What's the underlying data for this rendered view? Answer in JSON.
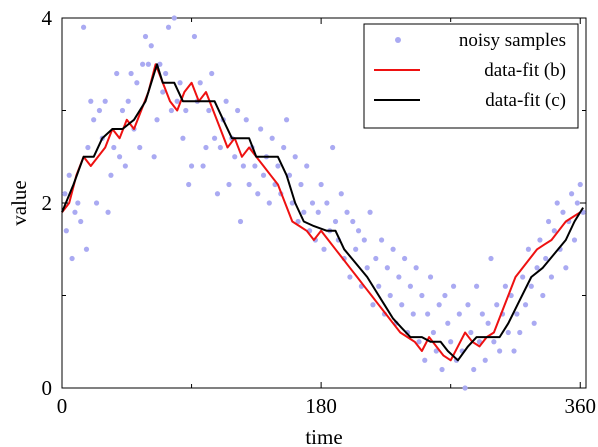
{
  "chart_data": {
    "type": "line",
    "title": "",
    "xlabel": "time",
    "ylabel": "value",
    "xlim": [
      0,
      364
    ],
    "ylim": [
      0,
      4
    ],
    "x_ticks": [
      0,
      180,
      360
    ],
    "y_ticks": [
      0,
      2,
      4
    ],
    "grid": false,
    "legend_position": "top-right",
    "series": [
      {
        "name": "noisy samples",
        "kind": "scatter",
        "color": "#aaaaf2",
        "points": [
          [
            2,
            2.1
          ],
          [
            3,
            1.7
          ],
          [
            5,
            2.3
          ],
          [
            7,
            1.4
          ],
          [
            9,
            1.9
          ],
          [
            11,
            2.0
          ],
          [
            13,
            1.8
          ],
          [
            15,
            3.9
          ],
          [
            17,
            1.5
          ],
          [
            18,
            2.6
          ],
          [
            20,
            3.1
          ],
          [
            22,
            2.9
          ],
          [
            24,
            2.0
          ],
          [
            26,
            3.0
          ],
          [
            28,
            2.7
          ],
          [
            30,
            3.1
          ],
          [
            32,
            1.9
          ],
          [
            34,
            2.3
          ],
          [
            36,
            2.6
          ],
          [
            38,
            3.4
          ],
          [
            40,
            2.5
          ],
          [
            42,
            3.0
          ],
          [
            44,
            2.4
          ],
          [
            46,
            3.1
          ],
          [
            48,
            3.4
          ],
          [
            50,
            2.8
          ],
          [
            52,
            3.3
          ],
          [
            54,
            2.6
          ],
          [
            56,
            3.5
          ],
          [
            58,
            3.8
          ],
          [
            60,
            3.5
          ],
          [
            62,
            3.7
          ],
          [
            64,
            2.5
          ],
          [
            66,
            2.9
          ],
          [
            68,
            3.5
          ],
          [
            70,
            3.2
          ],
          [
            72,
            3.4
          ],
          [
            74,
            3.9
          ],
          [
            76,
            3.0
          ],
          [
            78,
            4.0
          ],
          [
            80,
            3.1
          ],
          [
            82,
            3.3
          ],
          [
            84,
            2.7
          ],
          [
            86,
            3.0
          ],
          [
            88,
            2.2
          ],
          [
            90,
            2.4
          ],
          [
            92,
            3.8
          ],
          [
            94,
            3.1
          ],
          [
            96,
            3.3
          ],
          [
            98,
            2.4
          ],
          [
            100,
            2.6
          ],
          [
            102,
            3.0
          ],
          [
            104,
            3.4
          ],
          [
            106,
            2.7
          ],
          [
            108,
            2.1
          ],
          [
            110,
            2.6
          ],
          [
            112,
            2.9
          ],
          [
            114,
            3.1
          ],
          [
            116,
            2.2
          ],
          [
            118,
            2.7
          ],
          [
            120,
            2.5
          ],
          [
            122,
            3.0
          ],
          [
            124,
            1.8
          ],
          [
            126,
            2.4
          ],
          [
            128,
            2.9
          ],
          [
            130,
            2.2
          ],
          [
            132,
            2.6
          ],
          [
            134,
            2.4
          ],
          [
            136,
            2.1
          ],
          [
            138,
            2.8
          ],
          [
            140,
            2.3
          ],
          [
            142,
            2.5
          ],
          [
            144,
            2.0
          ],
          [
            146,
            2.7
          ],
          [
            148,
            2.2
          ],
          [
            150,
            2.4
          ],
          [
            152,
            2.1
          ],
          [
            154,
            2.6
          ],
          [
            156,
            2.9
          ],
          [
            158,
            2.3
          ],
          [
            160,
            2.0
          ],
          [
            162,
            2.5
          ],
          [
            164,
            1.8
          ],
          [
            166,
            2.2
          ],
          [
            168,
            1.9
          ],
          [
            170,
            2.4
          ],
          [
            172,
            1.7
          ],
          [
            174,
            2.0
          ],
          [
            176,
            1.6
          ],
          [
            178,
            1.9
          ],
          [
            180,
            2.2
          ],
          [
            182,
            1.5
          ],
          [
            184,
            2.0
          ],
          [
            186,
            1.7
          ],
          [
            188,
            2.6
          ],
          [
            190,
            1.8
          ],
          [
            192,
            1.6
          ],
          [
            194,
            2.1
          ],
          [
            196,
            1.4
          ],
          [
            198,
            1.9
          ],
          [
            200,
            1.2
          ],
          [
            202,
            1.8
          ],
          [
            204,
            1.5
          ],
          [
            206,
            1.7
          ],
          [
            208,
            1.1
          ],
          [
            210,
            1.6
          ],
          [
            212,
            1.3
          ],
          [
            214,
            1.9
          ],
          [
            216,
            0.9
          ],
          [
            218,
            1.4
          ],
          [
            220,
            1.1
          ],
          [
            222,
            1.6
          ],
          [
            224,
            0.8
          ],
          [
            226,
            1.3
          ],
          [
            228,
            1.0
          ],
          [
            230,
            1.5
          ],
          [
            232,
            0.7
          ],
          [
            234,
            1.2
          ],
          [
            236,
            0.9
          ],
          [
            238,
            1.4
          ],
          [
            240,
            0.6
          ],
          [
            242,
            1.1
          ],
          [
            244,
            0.8
          ],
          [
            246,
            1.3
          ],
          [
            248,
            0.5
          ],
          [
            250,
            1.0
          ],
          [
            252,
            0.3
          ],
          [
            254,
            0.8
          ],
          [
            256,
            1.2
          ],
          [
            258,
            0.6
          ],
          [
            260,
            0.4
          ],
          [
            262,
            0.9
          ],
          [
            264,
            0.2
          ],
          [
            266,
            1.0
          ],
          [
            268,
            0.7
          ],
          [
            270,
            0.5
          ],
          [
            272,
            1.1
          ],
          [
            274,
            0.3
          ],
          [
            276,
            0.8
          ],
          [
            278,
            0.4
          ],
          [
            280,
            0.0
          ],
          [
            282,
            0.9
          ],
          [
            284,
            0.6
          ],
          [
            286,
            0.2
          ],
          [
            288,
            1.1
          ],
          [
            290,
            0.5
          ],
          [
            292,
            0.8
          ],
          [
            294,
            0.3
          ],
          [
            296,
            0.7
          ],
          [
            298,
            1.4
          ],
          [
            300,
            0.5
          ],
          [
            302,
            0.9
          ],
          [
            304,
            0.4
          ],
          [
            306,
            0.8
          ],
          [
            308,
            1.1
          ],
          [
            310,
            0.6
          ],
          [
            312,
            1.0
          ],
          [
            314,
            0.4
          ],
          [
            316,
            0.8
          ],
          [
            318,
            0.6
          ],
          [
            320,
            1.2
          ],
          [
            322,
            0.9
          ],
          [
            324,
            1.5
          ],
          [
            326,
            1.1
          ],
          [
            328,
            0.7
          ],
          [
            330,
            1.3
          ],
          [
            332,
            1.6
          ],
          [
            334,
            1.0
          ],
          [
            336,
            1.4
          ],
          [
            338,
            1.8
          ],
          [
            340,
            1.2
          ],
          [
            342,
            1.7
          ],
          [
            344,
            2.0
          ],
          [
            346,
            1.5
          ],
          [
            348,
            1.9
          ],
          [
            350,
            1.3
          ],
          [
            352,
            1.8
          ],
          [
            354,
            2.1
          ],
          [
            356,
            1.6
          ],
          [
            358,
            2.0
          ],
          [
            360,
            2.2
          ],
          [
            362,
            1.9
          ]
        ]
      },
      {
        "name": "data-fit (b)",
        "kind": "line",
        "color": "#ee1111",
        "points": [
          [
            0,
            1.9
          ],
          [
            5,
            2.0
          ],
          [
            10,
            2.3
          ],
          [
            15,
            2.5
          ],
          [
            20,
            2.4
          ],
          [
            25,
            2.5
          ],
          [
            30,
            2.6
          ],
          [
            35,
            2.8
          ],
          [
            40,
            2.7
          ],
          [
            45,
            2.9
          ],
          [
            50,
            2.8
          ],
          [
            55,
            3.0
          ],
          [
            60,
            3.2
          ],
          [
            65,
            3.5
          ],
          [
            70,
            3.3
          ],
          [
            75,
            3.1
          ],
          [
            80,
            3.0
          ],
          [
            85,
            3.2
          ],
          [
            90,
            3.3
          ],
          [
            95,
            3.1
          ],
          [
            100,
            3.2
          ],
          [
            105,
            3.0
          ],
          [
            110,
            2.8
          ],
          [
            115,
            2.6
          ],
          [
            120,
            2.7
          ],
          [
            125,
            2.5
          ],
          [
            130,
            2.6
          ],
          [
            135,
            2.5
          ],
          [
            140,
            2.4
          ],
          [
            145,
            2.3
          ],
          [
            150,
            2.2
          ],
          [
            155,
            2.0
          ],
          [
            160,
            1.8
          ],
          [
            165,
            1.75
          ],
          [
            170,
            1.7
          ],
          [
            175,
            1.6
          ],
          [
            180,
            1.7
          ],
          [
            185,
            1.6
          ],
          [
            190,
            1.5
          ],
          [
            195,
            1.4
          ],
          [
            200,
            1.3
          ],
          [
            205,
            1.2
          ],
          [
            210,
            1.1
          ],
          [
            215,
            1.0
          ],
          [
            220,
            0.9
          ],
          [
            225,
            0.8
          ],
          [
            230,
            0.7
          ],
          [
            235,
            0.6
          ],
          [
            240,
            0.55
          ],
          [
            245,
            0.5
          ],
          [
            250,
            0.4
          ],
          [
            255,
            0.55
          ],
          [
            260,
            0.45
          ],
          [
            265,
            0.35
          ],
          [
            270,
            0.3
          ],
          [
            275,
            0.45
          ],
          [
            280,
            0.6
          ],
          [
            285,
            0.5
          ],
          [
            290,
            0.45
          ],
          [
            295,
            0.55
          ],
          [
            300,
            0.6
          ],
          [
            305,
            0.8
          ],
          [
            310,
            1.0
          ],
          [
            315,
            1.2
          ],
          [
            320,
            1.3
          ],
          [
            325,
            1.4
          ],
          [
            330,
            1.5
          ],
          [
            335,
            1.55
          ],
          [
            340,
            1.6
          ],
          [
            345,
            1.7
          ],
          [
            350,
            1.8
          ],
          [
            355,
            1.85
          ],
          [
            360,
            1.9
          ]
        ]
      },
      {
        "name": "data-fit (c)",
        "kind": "line",
        "color": "#000000",
        "points": [
          [
            0,
            1.9
          ],
          [
            8,
            2.2
          ],
          [
            15,
            2.5
          ],
          [
            22,
            2.5
          ],
          [
            28,
            2.7
          ],
          [
            35,
            2.8
          ],
          [
            42,
            2.8
          ],
          [
            50,
            2.9
          ],
          [
            58,
            3.1
          ],
          [
            66,
            3.5
          ],
          [
            70,
            3.3
          ],
          [
            78,
            3.3
          ],
          [
            84,
            3.1
          ],
          [
            95,
            3.1
          ],
          [
            106,
            3.1
          ],
          [
            112,
            2.9
          ],
          [
            118,
            2.7
          ],
          [
            130,
            2.7
          ],
          [
            135,
            2.5
          ],
          [
            150,
            2.5
          ],
          [
            156,
            2.3
          ],
          [
            162,
            2.0
          ],
          [
            168,
            1.8
          ],
          [
            175,
            1.75
          ],
          [
            184,
            1.7
          ],
          [
            190,
            1.7
          ],
          [
            196,
            1.5
          ],
          [
            204,
            1.35
          ],
          [
            212,
            1.2
          ],
          [
            218,
            1.05
          ],
          [
            224,
            0.9
          ],
          [
            230,
            0.75
          ],
          [
            236,
            0.65
          ],
          [
            242,
            0.55
          ],
          [
            250,
            0.55
          ],
          [
            256,
            0.5
          ],
          [
            263,
            0.5
          ],
          [
            268,
            0.4
          ],
          [
            275,
            0.3
          ],
          [
            282,
            0.45
          ],
          [
            288,
            0.55
          ],
          [
            296,
            0.55
          ],
          [
            304,
            0.55
          ],
          [
            310,
            0.7
          ],
          [
            318,
            0.95
          ],
          [
            326,
            1.2
          ],
          [
            334,
            1.3
          ],
          [
            342,
            1.45
          ],
          [
            350,
            1.6
          ],
          [
            356,
            1.8
          ],
          [
            362,
            1.95
          ]
        ]
      }
    ]
  }
}
